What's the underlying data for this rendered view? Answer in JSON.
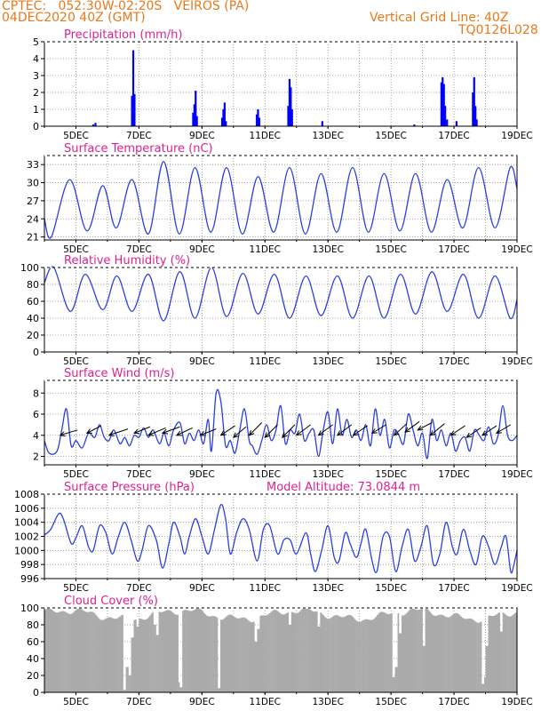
{
  "header": {
    "line1": "CPTEC:   052:30W-02:20S   VEIROS (PA)",
    "line2": "04DEC2020 40Z (GMT)",
    "grid_line": "Vertical Grid Line: 40Z",
    "code": "TQ0126L028"
  },
  "colors": {
    "header": "#e8791a",
    "title": "#e0208f",
    "line": "#2b3fe0",
    "bar": "#0000ff",
    "cloud": "#aaaaaa",
    "arrow": "#000000"
  },
  "x_ticks": [
    "5DEC",
    "7DEC",
    "9DEC",
    "11DEC",
    "13DEC",
    "15DEC",
    "17DEC",
    "19DEC"
  ],
  "chart_data": [
    {
      "id": "precip",
      "type": "bar",
      "title": "Precipitation (mm/h)",
      "ylim": [
        0,
        5
      ],
      "yticks": [
        0,
        1,
        2,
        3,
        4,
        5
      ],
      "grid": true,
      "x_unit": "days since 04DEC2020 00Z",
      "points": [
        [
          1.55,
          0.1
        ],
        [
          1.62,
          0.2
        ],
        [
          2.78,
          1.8
        ],
        [
          2.82,
          4.5
        ],
        [
          2.86,
          1.9
        ],
        [
          4.72,
          0.8
        ],
        [
          4.76,
          1.3
        ],
        [
          4.8,
          2.1
        ],
        [
          4.84,
          0.6
        ],
        [
          5.64,
          0.5
        ],
        [
          5.68,
          1.0
        ],
        [
          5.72,
          1.4
        ],
        [
          5.76,
          0.3
        ],
        [
          6.74,
          0.7
        ],
        [
          6.78,
          1.0
        ],
        [
          6.82,
          0.5
        ],
        [
          7.74,
          1.2
        ],
        [
          7.78,
          2.8
        ],
        [
          7.82,
          2.3
        ],
        [
          7.86,
          1.0
        ],
        [
          8.82,
          0.3
        ],
        [
          11.74,
          0.1
        ],
        [
          12.6,
          2.6
        ],
        [
          12.64,
          2.9
        ],
        [
          12.68,
          2.5
        ],
        [
          12.72,
          1.2
        ],
        [
          12.78,
          0.4
        ],
        [
          13.08,
          0.3
        ],
        [
          13.6,
          2.0
        ],
        [
          13.64,
          2.9
        ],
        [
          13.68,
          1.2
        ],
        [
          13.72,
          0.4
        ]
      ]
    },
    {
      "id": "temp",
      "type": "line",
      "title": "Surface Temperature (nC)",
      "ylim": [
        20.5,
        34.5
      ],
      "yticks": [
        21,
        24,
        27,
        30,
        33
      ],
      "grid": true,
      "mins": [
        [
          0.22,
          21.0
        ],
        [
          1.35,
          22.0
        ],
        [
          2.28,
          22.5
        ],
        [
          3.3,
          21.5
        ],
        [
          4.28,
          21.5
        ],
        [
          5.28,
          21.8
        ],
        [
          6.28,
          21.5
        ],
        [
          7.28,
          21.8
        ],
        [
          8.28,
          21.5
        ],
        [
          9.28,
          21.8
        ],
        [
          10.28,
          21.8
        ],
        [
          11.28,
          22.0
        ],
        [
          12.28,
          21.8
        ],
        [
          13.28,
          22.5
        ],
        [
          14.3,
          22.5
        ]
      ],
      "maxs": [
        [
          0.8,
          30.5
        ],
        [
          1.85,
          29.5
        ],
        [
          2.78,
          30.5
        ],
        [
          3.78,
          33.5
        ],
        [
          4.78,
          32.5
        ],
        [
          5.78,
          32.5
        ],
        [
          6.78,
          31.0
        ],
        [
          7.78,
          32.5
        ],
        [
          8.78,
          31.5
        ],
        [
          9.78,
          32.5
        ],
        [
          10.78,
          31.5
        ],
        [
          11.78,
          31.5
        ],
        [
          12.78,
          30.5
        ],
        [
          13.78,
          32.5
        ],
        [
          14.78,
          32.5
        ]
      ],
      "end": 29.0,
      "start": 24.0
    },
    {
      "id": "rh",
      "type": "line",
      "title": "Relative Humidity (%)",
      "ylim": [
        0,
        100
      ],
      "yticks": [
        0,
        20,
        40,
        60,
        80,
        100
      ],
      "grid": true,
      "maxs": [
        [
          0.3,
          100
        ],
        [
          1.3,
          92
        ],
        [
          2.3,
          90
        ],
        [
          3.3,
          92
        ],
        [
          4.3,
          95
        ],
        [
          5.3,
          100
        ],
        [
          6.3,
          93
        ],
        [
          7.3,
          92
        ],
        [
          8.3,
          90
        ],
        [
          9.3,
          90
        ],
        [
          10.3,
          90
        ],
        [
          11.3,
          92
        ],
        [
          12.3,
          95
        ],
        [
          13.3,
          92
        ],
        [
          14.3,
          90
        ]
      ],
      "mins": [
        [
          0.82,
          48
        ],
        [
          1.85,
          50
        ],
        [
          2.78,
          48
        ],
        [
          3.78,
          37
        ],
        [
          4.78,
          40
        ],
        [
          5.78,
          42
        ],
        [
          6.78,
          45
        ],
        [
          7.78,
          40
        ],
        [
          8.78,
          43
        ],
        [
          9.78,
          40
        ],
        [
          10.78,
          40
        ],
        [
          11.78,
          45
        ],
        [
          12.78,
          48
        ],
        [
          13.78,
          40
        ],
        [
          14.78,
          40
        ]
      ],
      "start": 82,
      "end": 62
    },
    {
      "id": "wind",
      "type": "line",
      "title": "Surface Wind (m/s)",
      "ylim": [
        1.2,
        9.2
      ],
      "yticks": [
        2,
        4,
        6,
        8
      ],
      "grid": true,
      "series": [
        [
          0.0,
          3.5
        ],
        [
          0.15,
          2.3
        ],
        [
          0.4,
          2.5
        ],
        [
          0.55,
          4.5
        ],
        [
          0.7,
          6.5
        ],
        [
          0.85,
          3.0
        ],
        [
          1.0,
          3.5
        ],
        [
          1.2,
          2.8
        ],
        [
          1.4,
          4.2
        ],
        [
          1.6,
          3.8
        ],
        [
          1.75,
          5.0
        ],
        [
          1.9,
          3.8
        ],
        [
          2.05,
          3.5
        ],
        [
          2.2,
          4.5
        ],
        [
          2.4,
          3.2
        ],
        [
          2.55,
          3.8
        ],
        [
          2.7,
          3.0
        ],
        [
          2.85,
          4.0
        ],
        [
          3.0,
          3.8
        ],
        [
          3.15,
          4.7
        ],
        [
          3.3,
          3.8
        ],
        [
          3.45,
          4.5
        ],
        [
          3.65,
          3.2
        ],
        [
          3.8,
          4.2
        ],
        [
          3.95,
          3.0
        ],
        [
          4.1,
          4.5
        ],
        [
          4.3,
          5.2
        ],
        [
          4.45,
          3.2
        ],
        [
          4.6,
          4.2
        ],
        [
          4.75,
          3.5
        ],
        [
          4.9,
          4.5
        ],
        [
          5.05,
          3.2
        ],
        [
          5.2,
          5.5
        ],
        [
          5.3,
          2.5
        ],
        [
          5.45,
          8.0
        ],
        [
          5.6,
          7.2
        ],
        [
          5.75,
          3.0
        ],
        [
          5.9,
          3.5
        ],
        [
          6.05,
          2.3
        ],
        [
          6.2,
          4.5
        ],
        [
          6.35,
          6.5
        ],
        [
          6.5,
          3.5
        ],
        [
          6.6,
          3.0
        ],
        [
          6.75,
          2.2
        ],
        [
          6.9,
          3.5
        ],
        [
          7.05,
          5.0
        ],
        [
          7.2,
          3.5
        ],
        [
          7.35,
          4.5
        ],
        [
          7.5,
          6.8
        ],
        [
          7.65,
          3.2
        ],
        [
          7.8,
          4.5
        ],
        [
          7.95,
          4.2
        ],
        [
          8.1,
          6.0
        ],
        [
          8.25,
          3.5
        ],
        [
          8.4,
          4.2
        ],
        [
          8.55,
          4.5
        ],
        [
          8.7,
          2.0
        ],
        [
          8.85,
          4.5
        ],
        [
          9.0,
          6.2
        ],
        [
          9.15,
          3.2
        ],
        [
          9.3,
          6.5
        ],
        [
          9.45,
          4.0
        ],
        [
          9.6,
          5.5
        ],
        [
          9.75,
          3.8
        ],
        [
          9.9,
          4.5
        ],
        [
          10.05,
          3.5
        ],
        [
          10.2,
          5.0
        ],
        [
          10.35,
          3.0
        ],
        [
          10.5,
          6.5
        ],
        [
          10.65,
          4.0
        ],
        [
          10.8,
          5.5
        ],
        [
          10.95,
          2.8
        ],
        [
          11.1,
          4.5
        ],
        [
          11.25,
          4.0
        ],
        [
          11.4,
          3.2
        ],
        [
          11.55,
          6.0
        ],
        [
          11.7,
          4.5
        ],
        [
          11.85,
          3.0
        ],
        [
          12.0,
          4.2
        ],
        [
          12.15,
          1.8
        ],
        [
          12.3,
          5.5
        ],
        [
          12.45,
          3.5
        ],
        [
          12.6,
          4.5
        ],
        [
          12.75,
          3.0
        ],
        [
          12.9,
          4.2
        ],
        [
          13.05,
          2.5
        ],
        [
          13.2,
          3.5
        ],
        [
          13.35,
          3.8
        ],
        [
          13.5,
          2.5
        ],
        [
          13.65,
          4.5
        ],
        [
          13.8,
          4.0
        ],
        [
          13.95,
          3.5
        ],
        [
          14.1,
          4.8
        ],
        [
          14.25,
          3.2
        ],
        [
          14.4,
          4.0
        ],
        [
          14.55,
          6.8
        ],
        [
          14.7,
          4.0
        ],
        [
          14.85,
          3.5
        ],
        [
          15.0,
          4.0
        ]
      ],
      "arrows": [
        [
          0.5,
          4.0,
          0.55,
          -0.25
        ],
        [
          1.35,
          4.2,
          0.45,
          -0.35
        ],
        [
          2.05,
          4.0,
          0.6,
          -0.3
        ],
        [
          2.85,
          4.2,
          0.5,
          -0.3
        ],
        [
          3.3,
          4.0,
          0.55,
          -0.35
        ],
        [
          3.75,
          4.2,
          0.55,
          -0.3
        ],
        [
          4.2,
          4.0,
          0.5,
          -0.35
        ],
        [
          4.95,
          4.0,
          0.5,
          -0.3
        ],
        [
          5.6,
          4.0,
          0.45,
          -0.45
        ],
        [
          6.0,
          3.8,
          0.4,
          -0.5
        ],
        [
          6.5,
          4.0,
          0.4,
          -0.6
        ],
        [
          7.0,
          3.8,
          0.4,
          -0.6
        ],
        [
          7.55,
          3.8,
          0.4,
          -0.6
        ],
        [
          8.0,
          4.0,
          0.45,
          -0.5
        ],
        [
          8.7,
          4.0,
          0.45,
          -0.5
        ],
        [
          9.3,
          4.0,
          0.45,
          -0.5
        ],
        [
          9.8,
          4.0,
          0.45,
          -0.45
        ],
        [
          10.4,
          4.2,
          0.45,
          -0.4
        ],
        [
          11.1,
          4.0,
          0.4,
          -0.55
        ],
        [
          11.45,
          4.3,
          0.45,
          -0.5
        ],
        [
          11.85,
          4.5,
          0.45,
          -0.35
        ],
        [
          12.25,
          4.0,
          0.45,
          -0.55
        ],
        [
          12.9,
          4.0,
          0.45,
          -0.45
        ],
        [
          13.4,
          3.8,
          0.45,
          -0.45
        ],
        [
          13.9,
          4.0,
          0.45,
          -0.45
        ],
        [
          14.35,
          4.2,
          0.45,
          -0.4
        ]
      ]
    },
    {
      "id": "pres",
      "type": "line",
      "title": "Surface Pressure (hPa)",
      "annotation": "Model Altitude: 73.0844 m",
      "ylim": [
        996,
        1008
      ],
      "yticks": [
        996,
        998,
        1000,
        1002,
        1004,
        1006,
        1008
      ],
      "grid": true,
      "series": [
        [
          0.0,
          1002.2
        ],
        [
          0.2,
          1003.0
        ],
        [
          0.45,
          1005.2
        ],
        [
          0.6,
          1004.5
        ],
        [
          0.85,
          1001.0
        ],
        [
          1.0,
          1001.8
        ],
        [
          1.2,
          1003.5
        ],
        [
          1.4,
          1000.5
        ],
        [
          1.55,
          1000.0
        ],
        [
          1.75,
          1003.5
        ],
        [
          1.95,
          1002.5
        ],
        [
          2.15,
          999.5
        ],
        [
          2.35,
          1002.0
        ],
        [
          2.55,
          1004.0
        ],
        [
          2.75,
          1001.5
        ],
        [
          2.95,
          998.5
        ],
        [
          3.1,
          1000.0
        ],
        [
          3.3,
          1003.5
        ],
        [
          3.55,
          1001.5
        ],
        [
          3.75,
          997.5
        ],
        [
          3.95,
          1001.0
        ],
        [
          4.1,
          1004.0
        ],
        [
          4.3,
          1002.0
        ],
        [
          4.45,
          999.5
        ],
        [
          4.6,
          1002.0
        ],
        [
          4.8,
          1004.5
        ],
        [
          5.0,
          1002.0
        ],
        [
          5.2,
          999.5
        ],
        [
          5.4,
          1003.0
        ],
        [
          5.6,
          1006.5
        ],
        [
          5.75,
          1004.5
        ],
        [
          5.9,
          999.5
        ],
        [
          6.1,
          1002.5
        ],
        [
          6.3,
          1004.5
        ],
        [
          6.5,
          1003.0
        ],
        [
          6.75,
          998.5
        ],
        [
          6.95,
          1003.0
        ],
        [
          7.15,
          1003.5
        ],
        [
          7.4,
          999.5
        ],
        [
          7.6,
          1001.5
        ],
        [
          7.8,
          1001.5
        ],
        [
          8.0,
          999.5
        ],
        [
          8.3,
          1002.5
        ],
        [
          8.45,
          999.5
        ],
        [
          8.6,
          997.0
        ],
        [
          8.8,
          1000.0
        ],
        [
          9.0,
          1003.5
        ],
        [
          9.2,
          999.0
        ],
        [
          9.35,
          998.5
        ],
        [
          9.55,
          1002.5
        ],
        [
          9.7,
          1001.0
        ],
        [
          9.9,
          999.0
        ],
        [
          10.05,
          1001.0
        ],
        [
          10.2,
          1003.0
        ],
        [
          10.4,
          998.5
        ],
        [
          10.55,
          997.0
        ],
        [
          10.75,
          1002.0
        ],
        [
          10.95,
          1002.0
        ],
        [
          11.15,
          997.0
        ],
        [
          11.35,
          1000.5
        ],
        [
          11.55,
          1003.0
        ],
        [
          11.75,
          998.5
        ],
        [
          11.95,
          1000.5
        ],
        [
          12.15,
          1003.5
        ],
        [
          12.35,
          998.0
        ],
        [
          12.55,
          999.5
        ],
        [
          12.75,
          1004.0
        ],
        [
          12.95,
          1000.5
        ],
        [
          13.1,
          999.5
        ],
        [
          13.3,
          1003.0
        ],
        [
          13.5,
          1000.0
        ],
        [
          13.7,
          998.0
        ],
        [
          13.9,
          1002.0
        ],
        [
          14.1,
          1000.5
        ],
        [
          14.3,
          998.0
        ],
        [
          14.5,
          1000.5
        ],
        [
          14.65,
          1002.0
        ],
        [
          14.8,
          997.0
        ],
        [
          14.9,
          998.0
        ],
        [
          15.0,
          1000.0
        ]
      ]
    },
    {
      "id": "cloud",
      "type": "bar",
      "title": "Cloud Cover (%)",
      "ylim": [
        0,
        100
      ],
      "yticks": [
        0,
        20,
        40,
        60,
        80,
        100
      ],
      "grid": true,
      "base": 92,
      "dips": [
        [
          2.55,
          3
        ],
        [
          2.62,
          30
        ],
        [
          2.7,
          20
        ],
        [
          2.78,
          65
        ],
        [
          2.95,
          78
        ],
        [
          3.5,
          80
        ],
        [
          3.6,
          68
        ],
        [
          4.3,
          12
        ],
        [
          4.34,
          6
        ],
        [
          5.55,
          5
        ],
        [
          6.7,
          60
        ],
        [
          6.8,
          75
        ],
        [
          7.8,
          80
        ],
        [
          8.7,
          78
        ],
        [
          11.1,
          18
        ],
        [
          11.16,
          30
        ],
        [
          11.3,
          70
        ],
        [
          12.05,
          55
        ],
        [
          13.9,
          10
        ],
        [
          13.95,
          18
        ],
        [
          14.05,
          55
        ],
        [
          14.5,
          72
        ]
      ]
    }
  ]
}
